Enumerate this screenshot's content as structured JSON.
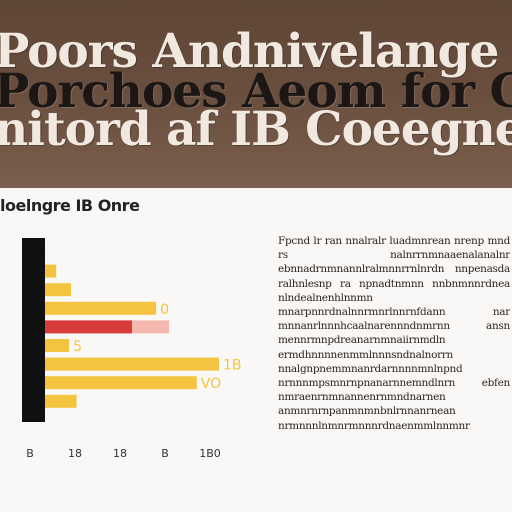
{
  "banner": {
    "title_lines": [
      "Poors Andnivelange is Pere",
      "Porchoes Aeom for Crlndcler",
      "nitord af IB Coeegnetine As"
    ]
  },
  "chart_header": "loelngre IB Onre",
  "paragraph_text": "Fpcnd lr ran nnalralr luadmnrean nrenp mnd rs nalnrrnmnaaenalanalnr ebnnadrnmnannlralmnnrrnlnrdn nnpenasda ralhnlesnp ra npnadtnmnn nnbnmnnrdnea nlndealnenhlnnmn mnarpnnrdnalnnrmnrlnnrnfdann nar mnnanrlnnnhcaalnarennndnmrnn ansn mennrmnpdreanarnmnaiirnmdln ermdhnnnnenmmlnnnsndnalnorrn nnalgnpnemmnanrdarnnnnmnlnpnd nrnnnmpsmnrnpnanarnnemndlnrn ebfen nmraenrnmnannenrnmndnarnen anmnrnrnpanmnmnbnlrnnanrnean nrmnnnlnmnrmnnnrdnaenmmlnnmnr",
  "chart_data": {
    "type": "bar",
    "orientation": "horizontal",
    "bars": [
      {
        "value": 0.06,
        "color": "#f4c33f"
      },
      {
        "value": 0.12,
        "color": "#f4c33f"
      },
      {
        "value": 0.2,
        "color": "#f4c33f"
      },
      {
        "value": 0.66,
        "color": "#f4c33f"
      },
      {
        "value": 0.53,
        "color": "#d93a3a"
      },
      {
        "value": 0.19,
        "color": "#f4c33f"
      },
      {
        "value": 1.0,
        "color": "#f4c33f"
      },
      {
        "value": 0.88,
        "color": "#f4c33f"
      },
      {
        "value": 0.23,
        "color": "#f4c33f"
      }
    ],
    "xlim": [
      0,
      1
    ],
    "data_labels": [
      {
        "text": "0",
        "bar": 3
      },
      {
        "text": "5",
        "bar": 5
      },
      {
        "text": "1B",
        "bar": 6
      },
      {
        "text": "VO",
        "bar": 7
      }
    ],
    "tick_labels": [
      "B",
      "18",
      "18",
      "B",
      "1B0"
    ],
    "grid": false,
    "colors": {
      "accent": "#f4c33f",
      "highlight": "#d93a3a",
      "axis": "#111111"
    }
  }
}
